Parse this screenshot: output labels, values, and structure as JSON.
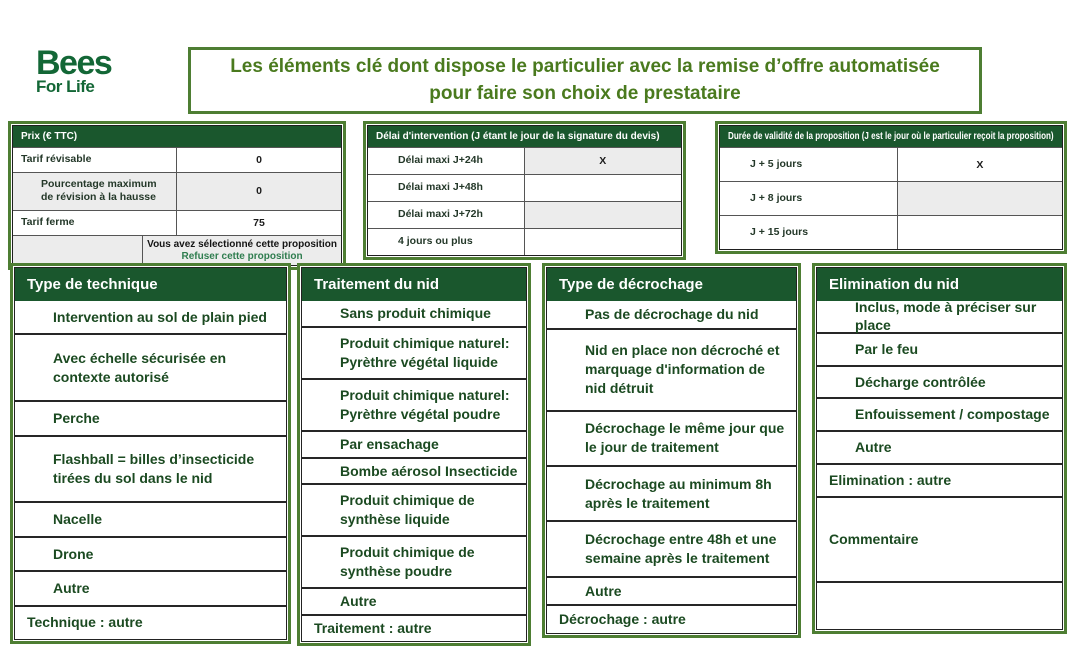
{
  "logo": {
    "line1": "Bees",
    "line2": "For Life"
  },
  "title": "Les éléments clé dont dispose le particulier avec la remise d’offre automatisée pour faire son choix de prestataire",
  "colors": {
    "header_green": "#1a572d",
    "border_green": "#4e7e33",
    "title_green": "#4a7a1e",
    "item_green": "#1b4a21",
    "link_green": "#2f7d4f",
    "shaded_cell": "#ececec"
  },
  "price_table": {
    "header": "Prix (€ TTC)",
    "rows": [
      {
        "label": "Tarif révisable",
        "value": "0",
        "indent": false,
        "shaded": false
      },
      {
        "label": "Pourcentage maximum de révision à la hausse",
        "value": "0",
        "indent": true,
        "shaded": true
      },
      {
        "label": "Tarif ferme",
        "value": "75",
        "indent": false,
        "shaded": false
      }
    ],
    "selection_status": "Vous avez sélectionné cette proposition",
    "selection_action": "Refuser cette proposition"
  },
  "delay_table": {
    "header": "Délai d'intervention (J étant le jour de la signature du devis)",
    "rows": [
      {
        "label": "Délai maxi J+24h",
        "value": "X",
        "shaded": true
      },
      {
        "label": "Délai maxi J+48h",
        "value": "",
        "shaded": false
      },
      {
        "label": "Délai maxi J+72h",
        "value": "",
        "shaded": true
      },
      {
        "label": "4 jours ou plus",
        "value": "",
        "shaded": false
      }
    ]
  },
  "validity_table": {
    "header": "Durée de validité de la proposition (J est le jour où le particulier reçoit la proposition)",
    "rows": [
      {
        "label": "J + 5 jours",
        "value": "X",
        "shaded": false
      },
      {
        "label": "J + 8 jours",
        "value": "",
        "shaded": true
      },
      {
        "label": "J + 15 jours",
        "value": "",
        "shaded": false
      }
    ]
  },
  "panels": [
    {
      "id": "technique",
      "header": "Type de technique",
      "rows": [
        {
          "text": "Intervention au sol de plain pied",
          "indent": true,
          "lines": 1
        },
        {
          "text": "Avec échelle sécurisée en contexte autorisé",
          "indent": true,
          "lines": 2
        },
        {
          "text": "Perche",
          "indent": true,
          "lines": 1
        },
        {
          "text": "Flashball = billes d’insecticide tirées du sol dans le nid",
          "indent": true,
          "lines": 2
        },
        {
          "text": "Nacelle",
          "indent": true,
          "lines": 1
        },
        {
          "text": "Drone",
          "indent": true,
          "lines": 1
        },
        {
          "text": "Autre",
          "indent": true,
          "lines": 1
        },
        {
          "text": "Technique : autre",
          "indent": false,
          "lines": 1
        }
      ]
    },
    {
      "id": "traitement",
      "header": "Traitement du nid",
      "rows": [
        {
          "text": "Sans produit chimique",
          "indent": true,
          "lines": 1
        },
        {
          "text": "Produit chimique naturel: Pyrèthre végétal liquide",
          "indent": true,
          "lines": 2
        },
        {
          "text": "Produit chimique naturel: Pyrèthre végétal poudre",
          "indent": true,
          "lines": 2
        },
        {
          "text": "Par ensachage",
          "indent": true,
          "lines": 1
        },
        {
          "text": "Bombe aérosol Insecticide",
          "indent": true,
          "lines": 1
        },
        {
          "text": "Produit chimique de synthèse liquide",
          "indent": true,
          "lines": 2
        },
        {
          "text": "Produit chimique de synthèse poudre",
          "indent": true,
          "lines": 2
        },
        {
          "text": "Autre",
          "indent": true,
          "lines": 1
        },
        {
          "text": "Traitement : autre",
          "indent": false,
          "lines": 1
        }
      ]
    },
    {
      "id": "decrochage",
      "header": "Type de décrochage",
      "rows": [
        {
          "text": "Pas de décrochage du nid",
          "indent": true,
          "lines": 1
        },
        {
          "text": "Nid en place non décroché et marquage d'information de nid détruit",
          "indent": true,
          "lines": 3
        },
        {
          "text": "Décrochage le même jour que le jour de traitement",
          "indent": true,
          "lines": 2
        },
        {
          "text": "Décrochage au minimum 8h après le traitement",
          "indent": true,
          "lines": 2
        },
        {
          "text": "Décrochage entre 48h et une semaine après le traitement",
          "indent": true,
          "lines": 2
        },
        {
          "text": "Autre",
          "indent": true,
          "lines": 1
        },
        {
          "text": "Décrochage : autre",
          "indent": false,
          "lines": 1
        }
      ]
    },
    {
      "id": "elimination",
      "header": "Elimination du nid",
      "rows": [
        {
          "text": "Inclus, mode à préciser sur place",
          "indent": true,
          "lines": 1
        },
        {
          "text": "Par le feu",
          "indent": true,
          "lines": 1
        },
        {
          "text": "Décharge contrôlée",
          "indent": true,
          "lines": 1
        },
        {
          "text": "Enfouissement / compostage",
          "indent": true,
          "lines": 1
        },
        {
          "text": "Autre",
          "indent": true,
          "lines": 1
        },
        {
          "text": "Elimination : autre",
          "indent": false,
          "lines": 1
        },
        {
          "text": "Commentaire",
          "indent": false,
          "lines": 2.7
        },
        {
          "text": "",
          "indent": false,
          "lines": 1.5
        }
      ]
    }
  ]
}
